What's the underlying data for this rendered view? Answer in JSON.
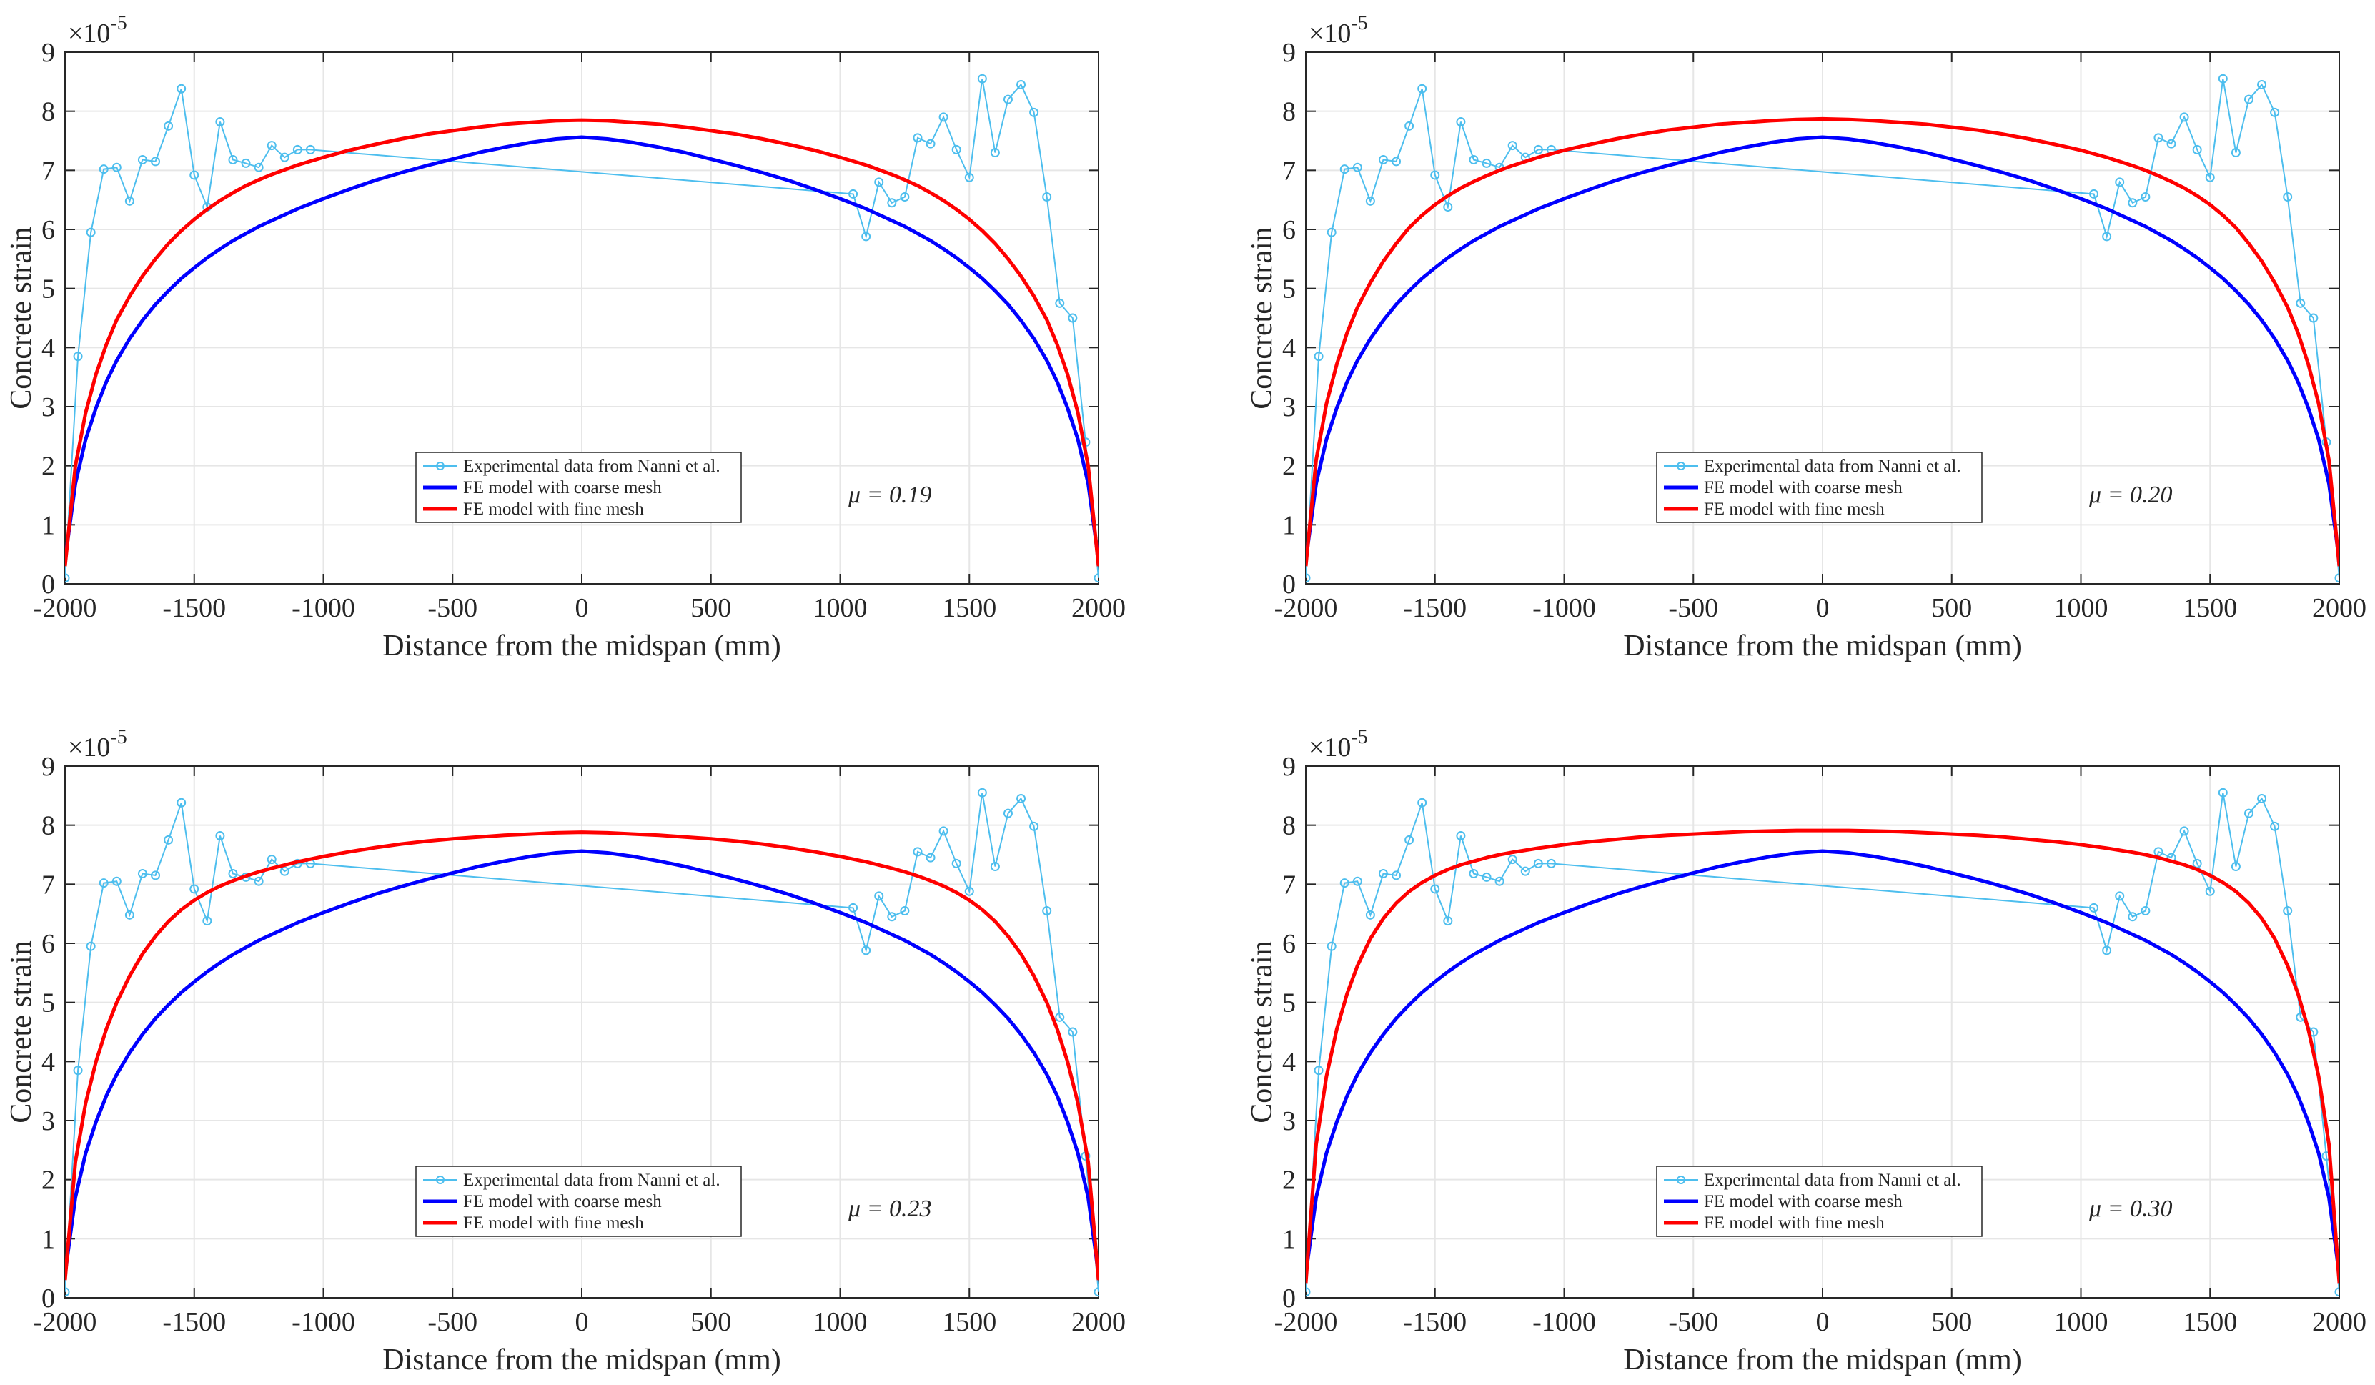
{
  "figure": {
    "common_x": [
      -2000,
      -1960,
      -1920,
      -1880,
      -1840,
      -1800,
      -1750,
      -1700,
      -1650,
      -1600,
      -1550,
      -1500,
      -1450,
      -1400,
      -1350,
      -1300,
      -1250,
      -1200,
      -1100,
      -1000,
      -900,
      -800,
      -700,
      -600,
      -500,
      -400,
      -300,
      -200,
      -100,
      0,
      100,
      200,
      300,
      400,
      500,
      600,
      700,
      800,
      900,
      1000,
      1100,
      1200,
      1250,
      1300,
      1350,
      1400,
      1450,
      1500,
      1550,
      1600,
      1650,
      1700,
      1750,
      1800,
      1840,
      1880,
      1920,
      1960,
      2000
    ],
    "experimental_x": [
      -2000,
      -1950,
      -1900,
      -1850,
      -1800,
      -1750,
      -1700,
      -1650,
      -1600,
      -1550,
      -1500,
      -1450,
      -1400,
      -1350,
      -1300,
      -1250,
      -1200,
      -1150,
      -1100,
      -1050,
      1050,
      1100,
      1150,
      1200,
      1250,
      1300,
      1350,
      1400,
      1450,
      1500,
      1550,
      1600,
      1650,
      1700,
      1750,
      1800,
      1850,
      1900,
      1950,
      2000
    ],
    "experimental_y": [
      0.1,
      3.85,
      5.95,
      7.02,
      7.05,
      6.48,
      7.18,
      7.15,
      7.75,
      8.38,
      6.92,
      6.38,
      7.82,
      7.18,
      7.12,
      7.05,
      7.42,
      7.22,
      7.35,
      7.35,
      6.6,
      5.88,
      6.8,
      6.45,
      6.55,
      7.55,
      7.45,
      7.9,
      7.35,
      6.88,
      8.55,
      7.3,
      8.2,
      8.45,
      7.98,
      6.55,
      4.75,
      4.5,
      2.4,
      0.1
    ]
  },
  "chart_data": [
    {
      "type": "line",
      "title": "",
      "annotation": "μ = 0.19",
      "xlabel": "Distance from the midspan (mm)",
      "ylabel": "Concrete strain",
      "y_exponent": "×10",
      "y_exponent_power": "-5",
      "xlim": [
        -2000,
        2000
      ],
      "ylim": [
        0,
        9
      ],
      "xticks": [
        "-2000",
        "-1500",
        "-1000",
        "-500",
        "0",
        "500",
        "1000",
        "1500",
        "2000"
      ],
      "yticks": [
        "0",
        "1",
        "2",
        "3",
        "4",
        "5",
        "6",
        "7",
        "8",
        "9"
      ],
      "grid": true,
      "legend_position": "bottom-center",
      "series": [
        {
          "name": "Experimental data from Nanni et al.",
          "color": "#4DBEEE",
          "marker": "circle",
          "x_ref": "figure.experimental_x",
          "y_ref": "figure.experimental_y"
        },
        {
          "name": "FE model with coarse mesh",
          "color": "#0000FF",
          "x_ref": "figure.common_x",
          "values": [
            0.4,
            1.7,
            2.45,
            2.98,
            3.42,
            3.78,
            4.15,
            4.46,
            4.73,
            4.96,
            5.17,
            5.35,
            5.52,
            5.67,
            5.81,
            5.93,
            6.05,
            6.15,
            6.35,
            6.52,
            6.68,
            6.83,
            6.96,
            7.08,
            7.19,
            7.3,
            7.39,
            7.47,
            7.53,
            7.56,
            7.53,
            7.47,
            7.39,
            7.3,
            7.19,
            7.08,
            6.96,
            6.83,
            6.68,
            6.52,
            6.35,
            6.15,
            6.05,
            5.93,
            5.81,
            5.67,
            5.52,
            5.35,
            5.17,
            4.96,
            4.73,
            4.46,
            4.15,
            3.78,
            3.42,
            2.98,
            2.45,
            1.7,
            0.4
          ]
        },
        {
          "name": "FE model with fine mesh",
          "color": "#FF0000",
          "x_ref": "figure.common_x",
          "values": [
            0.3,
            2.0,
            2.9,
            3.55,
            4.05,
            4.47,
            4.87,
            5.21,
            5.5,
            5.76,
            5.98,
            6.17,
            6.34,
            6.49,
            6.62,
            6.74,
            6.84,
            6.93,
            7.09,
            7.22,
            7.34,
            7.44,
            7.53,
            7.61,
            7.67,
            7.73,
            7.78,
            7.81,
            7.84,
            7.85,
            7.84,
            7.81,
            7.78,
            7.73,
            7.67,
            7.61,
            7.53,
            7.44,
            7.34,
            7.22,
            7.09,
            6.93,
            6.84,
            6.74,
            6.62,
            6.49,
            6.34,
            6.17,
            5.98,
            5.76,
            5.5,
            5.21,
            4.87,
            4.47,
            4.05,
            3.55,
            2.9,
            2.0,
            0.3
          ]
        }
      ]
    },
    {
      "type": "line",
      "title": "",
      "annotation": "μ = 0.20",
      "xlabel": "Distance from the midspan (mm)",
      "ylabel": "Concrete strain",
      "y_exponent": "×10",
      "y_exponent_power": "-5",
      "xlim": [
        -2000,
        2000
      ],
      "ylim": [
        0,
        9
      ],
      "xticks": [
        "-2000",
        "-1500",
        "-1000",
        "-500",
        "0",
        "500",
        "1000",
        "1500",
        "2000"
      ],
      "yticks": [
        "0",
        "1",
        "2",
        "3",
        "4",
        "5",
        "6",
        "7",
        "8",
        "9"
      ],
      "grid": true,
      "legend_position": "bottom-center",
      "series": [
        {
          "name": "Experimental data from Nanni et al.",
          "color": "#4DBEEE",
          "marker": "circle",
          "x_ref": "figure.experimental_x",
          "y_ref": "figure.experimental_y"
        },
        {
          "name": "FE model with coarse mesh",
          "color": "#0000FF",
          "x_ref": "figure.common_x",
          "values": [
            0.4,
            1.7,
            2.45,
            2.98,
            3.42,
            3.78,
            4.15,
            4.46,
            4.73,
            4.96,
            5.17,
            5.35,
            5.52,
            5.67,
            5.81,
            5.93,
            6.05,
            6.15,
            6.35,
            6.52,
            6.68,
            6.83,
            6.96,
            7.08,
            7.19,
            7.3,
            7.39,
            7.47,
            7.53,
            7.56,
            7.53,
            7.47,
            7.39,
            7.3,
            7.19,
            7.08,
            6.96,
            6.83,
            6.68,
            6.52,
            6.35,
            6.15,
            6.05,
            5.93,
            5.81,
            5.67,
            5.52,
            5.35,
            5.17,
            4.96,
            4.73,
            4.46,
            4.15,
            3.78,
            3.42,
            2.98,
            2.45,
            1.7,
            0.4
          ]
        },
        {
          "name": "FE model with fine mesh",
          "color": "#FF0000",
          "x_ref": "figure.common_x",
          "values": [
            0.3,
            2.1,
            3.05,
            3.72,
            4.25,
            4.68,
            5.1,
            5.46,
            5.76,
            6.03,
            6.24,
            6.42,
            6.57,
            6.7,
            6.81,
            6.91,
            7.0,
            7.08,
            7.22,
            7.34,
            7.44,
            7.53,
            7.61,
            7.68,
            7.73,
            7.78,
            7.81,
            7.84,
            7.86,
            7.87,
            7.86,
            7.84,
            7.81,
            7.78,
            7.73,
            7.68,
            7.61,
            7.53,
            7.44,
            7.34,
            7.22,
            7.08,
            7.0,
            6.91,
            6.81,
            6.7,
            6.57,
            6.42,
            6.24,
            6.03,
            5.76,
            5.46,
            5.1,
            4.68,
            4.25,
            3.72,
            3.05,
            2.1,
            0.3
          ]
        }
      ]
    },
    {
      "type": "line",
      "title": "",
      "annotation": "μ = 0.23",
      "xlabel": "Distance from the midspan (mm)",
      "ylabel": "Concrete strain",
      "y_exponent": "×10",
      "y_exponent_power": "-5",
      "xlim": [
        -2000,
        2000
      ],
      "ylim": [
        0,
        9
      ],
      "xticks": [
        "-2000",
        "-1500",
        "-1000",
        "-500",
        "0",
        "500",
        "1000",
        "1500",
        "2000"
      ],
      "yticks": [
        "0",
        "1",
        "2",
        "3",
        "4",
        "5",
        "6",
        "7",
        "8",
        "9"
      ],
      "grid": true,
      "legend_position": "bottom-center",
      "series": [
        {
          "name": "Experimental data from Nanni et al.",
          "color": "#4DBEEE",
          "marker": "circle",
          "x_ref": "figure.experimental_x",
          "y_ref": "figure.experimental_y"
        },
        {
          "name": "FE model with coarse mesh",
          "color": "#0000FF",
          "x_ref": "figure.common_x",
          "values": [
            0.4,
            1.7,
            2.45,
            2.98,
            3.42,
            3.78,
            4.15,
            4.46,
            4.73,
            4.96,
            5.17,
            5.35,
            5.52,
            5.67,
            5.81,
            5.93,
            6.05,
            6.15,
            6.35,
            6.52,
            6.68,
            6.83,
            6.96,
            7.08,
            7.19,
            7.3,
            7.39,
            7.47,
            7.53,
            7.56,
            7.53,
            7.47,
            7.39,
            7.3,
            7.19,
            7.08,
            6.96,
            6.83,
            6.68,
            6.52,
            6.35,
            6.15,
            6.05,
            5.93,
            5.81,
            5.67,
            5.52,
            5.35,
            5.17,
            4.96,
            4.73,
            4.46,
            4.15,
            3.78,
            3.42,
            2.98,
            2.45,
            1.7,
            0.4
          ]
        },
        {
          "name": "FE model with fine mesh",
          "color": "#FF0000",
          "x_ref": "figure.common_x",
          "values": [
            0.3,
            2.3,
            3.3,
            4.0,
            4.55,
            5.0,
            5.45,
            5.82,
            6.12,
            6.37,
            6.57,
            6.73,
            6.86,
            6.97,
            7.06,
            7.14,
            7.21,
            7.27,
            7.38,
            7.47,
            7.55,
            7.62,
            7.68,
            7.73,
            7.77,
            7.8,
            7.83,
            7.85,
            7.87,
            7.88,
            7.87,
            7.85,
            7.83,
            7.8,
            7.77,
            7.73,
            7.68,
            7.62,
            7.55,
            7.47,
            7.38,
            7.27,
            7.21,
            7.14,
            7.06,
            6.97,
            6.86,
            6.73,
            6.57,
            6.37,
            6.12,
            5.82,
            5.45,
            5.0,
            4.55,
            4.0,
            3.3,
            2.3,
            0.3
          ]
        }
      ]
    },
    {
      "type": "line",
      "title": "",
      "annotation": "μ = 0.30",
      "xlabel": "Distance from the midspan (mm)",
      "ylabel": "Concrete strain",
      "y_exponent": "×10",
      "y_exponent_power": "-5",
      "xlim": [
        -2000,
        2000
      ],
      "ylim": [
        0,
        9
      ],
      "xticks": [
        "-2000",
        "-1500",
        "-1000",
        "-500",
        "0",
        "500",
        "1000",
        "1500",
        "2000"
      ],
      "yticks": [
        "0",
        "1",
        "2",
        "3",
        "4",
        "5",
        "6",
        "7",
        "8",
        "9"
      ],
      "grid": true,
      "legend_position": "bottom-center",
      "series": [
        {
          "name": "Experimental data from Nanni et al.",
          "color": "#4DBEEE",
          "marker": "circle",
          "x_ref": "figure.experimental_x",
          "y_ref": "figure.experimental_y"
        },
        {
          "name": "FE model with coarse mesh",
          "color": "#0000FF",
          "x_ref": "figure.common_x",
          "values": [
            0.4,
            1.7,
            2.45,
            2.98,
            3.42,
            3.78,
            4.15,
            4.46,
            4.73,
            4.96,
            5.17,
            5.35,
            5.52,
            5.67,
            5.81,
            5.93,
            6.05,
            6.15,
            6.35,
            6.52,
            6.68,
            6.83,
            6.96,
            7.08,
            7.19,
            7.3,
            7.39,
            7.47,
            7.53,
            7.56,
            7.53,
            7.47,
            7.39,
            7.3,
            7.19,
            7.08,
            6.96,
            6.83,
            6.68,
            6.52,
            6.35,
            6.15,
            6.05,
            5.93,
            5.81,
            5.67,
            5.52,
            5.35,
            5.17,
            4.96,
            4.73,
            4.46,
            4.15,
            3.78,
            3.42,
            2.98,
            2.45,
            1.7,
            0.4
          ]
        },
        {
          "name": "FE model with fine mesh",
          "color": "#FF0000",
          "x_ref": "figure.common_x",
          "values": [
            0.25,
            2.6,
            3.75,
            4.55,
            5.15,
            5.62,
            6.08,
            6.42,
            6.68,
            6.88,
            7.03,
            7.15,
            7.25,
            7.33,
            7.39,
            7.45,
            7.5,
            7.54,
            7.61,
            7.67,
            7.72,
            7.76,
            7.8,
            7.83,
            7.85,
            7.87,
            7.89,
            7.9,
            7.91,
            7.91,
            7.91,
            7.9,
            7.89,
            7.87,
            7.85,
            7.83,
            7.8,
            7.76,
            7.72,
            7.67,
            7.61,
            7.54,
            7.5,
            7.45,
            7.39,
            7.33,
            7.25,
            7.15,
            7.03,
            6.88,
            6.68,
            6.42,
            6.08,
            5.62,
            5.15,
            4.55,
            3.75,
            2.6,
            0.25
          ]
        }
      ]
    }
  ]
}
